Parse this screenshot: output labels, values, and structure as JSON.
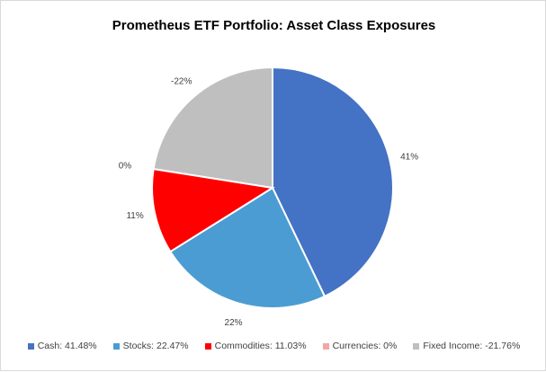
{
  "chart_data": {
    "type": "pie",
    "title": "Prometheus ETF Portfolio: Asset Class Exposures",
    "slices": [
      {
        "category": "Cash",
        "value": 41.48,
        "label": "41%",
        "legend": "Cash: 41.48%",
        "color": "#4472C4"
      },
      {
        "category": "Stocks",
        "value": 22.47,
        "label": "22%",
        "legend": "Stocks: 22.47%",
        "color": "#4B9CD3"
      },
      {
        "category": "Commodities",
        "value": 11.03,
        "label": "11%",
        "legend": "Commodities: 11.03%",
        "color": "#FF0000"
      },
      {
        "category": "Currencies",
        "value": 0,
        "label": "0%",
        "legend": "Currencies: 0%",
        "color": "#F4A6A6"
      },
      {
        "category": "Fixed Income",
        "value": -21.76,
        "label": "-22%",
        "legend": "Fixed Income: -21.76%",
        "color": "#BFBFBF"
      }
    ],
    "legend_position": "bottom"
  }
}
